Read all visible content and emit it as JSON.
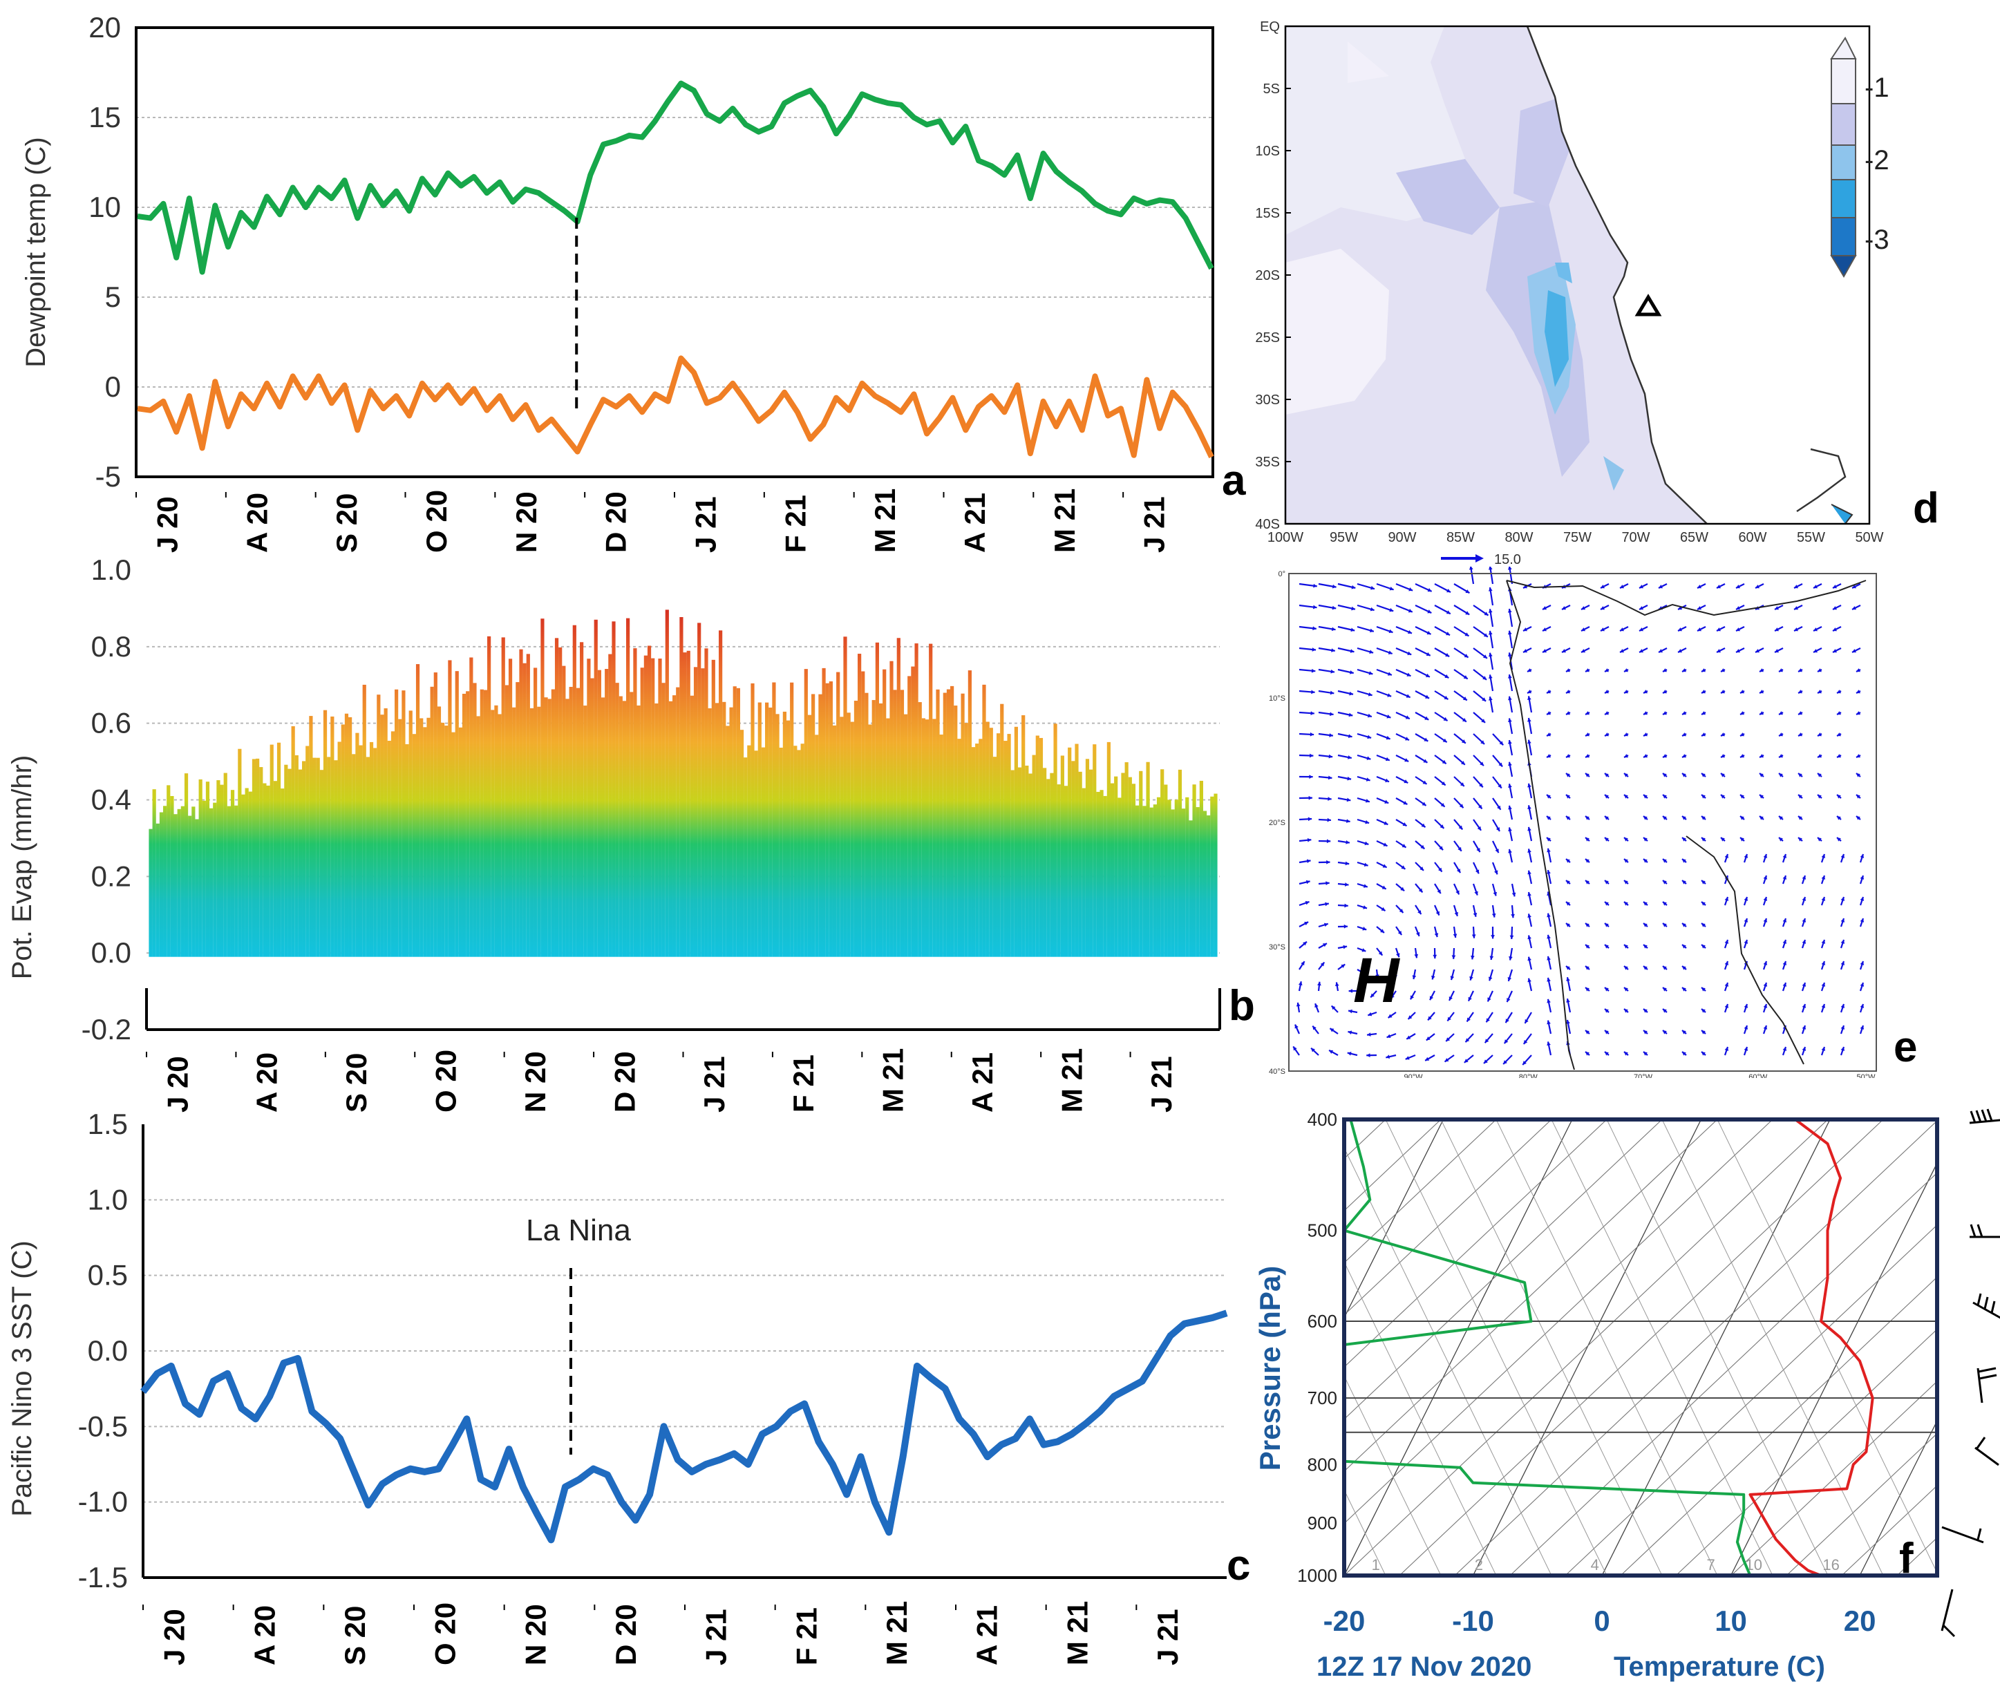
{
  "panel_labels": {
    "a": "a",
    "b": "b",
    "c": "c",
    "d": "d",
    "e": "e",
    "f": "f"
  },
  "colors": {
    "dewpoint": "#17a74a",
    "dewpoint_dep": "#f07f25",
    "sst": "#1f6bc0",
    "skewt_temp": "#e02020",
    "skewt_dew": "#17a74a",
    "wind_vec": "#1010e0",
    "map_light": "#e6e3f4",
    "map_mid": "#c6c8ec",
    "map_blue1": "#8ec4ec",
    "map_blue2": "#2fa3e0"
  },
  "month_ticks": [
    "J 20",
    "A 20",
    "S 20",
    "O 20",
    "N 20",
    "D 20",
    "J 21",
    "F 21",
    "M 21",
    "A 21",
    "M 21",
    "J 21"
  ],
  "chart_data": [
    {
      "id": "a",
      "type": "line",
      "ylabel": "Dewpoint temp (C)",
      "ylim": [
        -5,
        20
      ],
      "yticks": [
        "20",
        "15",
        "10",
        "5",
        "0",
        "-5"
      ],
      "grid": true,
      "marker_month_index": 4.6,
      "series": [
        {
          "values": [
            9.5,
            9.4,
            10.2,
            7.2,
            10.5,
            6.4,
            10.1,
            7.8,
            9.7,
            8.9,
            10.6,
            9.6,
            11.1,
            10.0,
            11.1,
            10.5,
            11.5,
            9.4,
            11.2,
            10.1,
            10.9,
            9.8,
            11.6,
            10.7,
            11.9,
            11.2,
            11.7,
            10.8,
            11.4,
            10.3,
            11.0,
            10.8,
            10.3,
            9.8,
            9.2,
            11.8,
            13.5,
            13.7,
            14.0,
            13.9,
            14.8,
            15.9,
            16.9,
            16.5,
            15.2,
            14.8,
            15.5,
            14.6,
            14.2,
            14.5,
            15.8,
            16.2,
            16.5,
            15.6,
            14.1,
            15.1,
            16.3,
            16.0,
            15.8,
            15.7,
            15.0,
            14.6,
            14.8,
            13.6,
            14.5,
            12.6,
            12.3,
            11.8,
            12.9,
            10.5,
            13.0,
            12.0,
            11.4,
            10.9,
            10.2,
            9.8,
            9.6,
            10.5,
            10.2,
            10.4,
            10.3,
            9.4,
            8.0,
            6.6
          ]
        },
        {
          "values": [
            -1.2,
            -1.3,
            -0.8,
            -2.5,
            -0.5,
            -3.4,
            0.3,
            -2.2,
            -0.4,
            -1.2,
            0.2,
            -1.1,
            0.6,
            -0.6,
            0.6,
            -0.9,
            0.1,
            -2.4,
            -0.2,
            -1.2,
            -0.5,
            -1.6,
            0.2,
            -0.7,
            0.1,
            -0.9,
            -0.1,
            -1.3,
            -0.5,
            -1.8,
            -1.0,
            -2.4,
            -1.8,
            -2.7,
            -3.6,
            -2.1,
            -0.7,
            -1.1,
            -0.5,
            -1.4,
            -0.4,
            -0.8,
            1.6,
            0.8,
            -0.9,
            -0.6,
            0.2,
            -0.8,
            -1.9,
            -1.3,
            -0.3,
            -1.4,
            -2.9,
            -2.1,
            -0.6,
            -1.3,
            0.2,
            -0.5,
            -0.9,
            -1.4,
            -0.4,
            -2.6,
            -1.7,
            -0.6,
            -2.4,
            -1.1,
            -0.5,
            -1.4,
            0.1,
            -3.7,
            -0.8,
            -2.2,
            -0.8,
            -2.4,
            0.6,
            -1.6,
            -1.2,
            -3.8,
            0.4,
            -2.3,
            -0.3,
            -1.1,
            -2.4,
            -3.9
          ]
        }
      ]
    },
    {
      "id": "b",
      "type": "bar",
      "ylabel": "Pot. Evap (mm/hr)",
      "ylim": [
        -0.2,
        1.0
      ],
      "yticks": [
        "1.0",
        "0.8",
        "0.6",
        "0.4",
        "0.2",
        "0.0",
        "-0.2"
      ],
      "grid": true,
      "series": [
        {
          "name": "daily_max",
          "values": [
            0.45,
            0.47,
            0.48,
            0.51,
            0.55,
            0.58,
            0.62,
            0.66,
            0.69,
            0.71,
            0.74,
            0.77,
            0.79,
            0.82,
            0.85,
            0.87,
            0.88,
            0.89,
            0.9,
            0.9,
            0.88,
            0.91,
            0.92,
            0.86,
            0.7,
            0.76,
            0.72,
            0.8,
            0.84,
            0.82,
            0.86,
            0.85,
            0.78,
            0.76,
            0.7,
            0.65,
            0.61,
            0.6,
            0.57,
            0.55,
            0.52,
            0.5,
            0.48,
            0.47
          ]
        },
        {
          "name": "daily_min",
          "values": [
            -0.01,
            -0.01,
            -0.01,
            -0.01,
            -0.01,
            -0.01,
            -0.01,
            -0.01,
            -0.01,
            -0.01,
            -0.01,
            -0.01,
            -0.01,
            -0.01,
            -0.01,
            -0.01,
            -0.01,
            -0.01,
            -0.01,
            -0.01,
            -0.01,
            -0.01,
            -0.01,
            -0.01,
            -0.01,
            -0.01,
            -0.01,
            -0.01,
            -0.01,
            -0.01,
            -0.01,
            -0.01,
            -0.01,
            -0.01,
            -0.01,
            -0.01,
            -0.01,
            -0.01,
            -0.01,
            -0.01,
            -0.01,
            -0.01,
            -0.01,
            -0.01
          ]
        }
      ]
    },
    {
      "id": "c",
      "type": "line",
      "ylabel": "Pacific Nino 3 SST (C)",
      "ylim": [
        -1.5,
        1.5
      ],
      "yticks": [
        "1.5",
        "1.0",
        "0.5",
        "0.0",
        "-0.5",
        "-1.0",
        "-1.5"
      ],
      "grid": true,
      "annotation": "La Nina",
      "marker_month_index": 4.7,
      "series": [
        {
          "values": [
            -0.27,
            -0.15,
            -0.1,
            -0.35,
            -0.42,
            -0.2,
            -0.15,
            -0.38,
            -0.45,
            -0.3,
            -0.08,
            -0.05,
            -0.4,
            -0.48,
            -0.58,
            -0.8,
            -1.02,
            -0.88,
            -0.82,
            -0.78,
            -0.8,
            -0.78,
            -0.62,
            -0.45,
            -0.85,
            -0.9,
            -0.65,
            -0.9,
            -1.08,
            -1.25,
            -0.9,
            -0.85,
            -0.78,
            -0.82,
            -1.0,
            -1.12,
            -0.95,
            -0.5,
            -0.72,
            -0.8,
            -0.75,
            -0.72,
            -0.68,
            -0.75,
            -0.55,
            -0.5,
            -0.4,
            -0.35,
            -0.6,
            -0.75,
            -0.95,
            -0.7,
            -1.0,
            -1.2,
            -0.7,
            -0.1,
            -0.18,
            -0.25,
            -0.45,
            -0.55,
            -0.7,
            -0.62,
            -0.58,
            -0.45,
            -0.62,
            -0.6,
            -0.55,
            -0.48,
            -0.4,
            -0.3,
            -0.25,
            -0.2,
            -0.05,
            0.1,
            0.18,
            0.2,
            0.22,
            0.25
          ]
        }
      ]
    },
    {
      "id": "d",
      "type": "heatmap",
      "colorbar_ticks": [
        "-1",
        "-2",
        "-3"
      ],
      "lat_labels": [
        "EQ",
        "5S",
        "10S",
        "15S",
        "20S",
        "25S",
        "30S",
        "35S",
        "40S"
      ],
      "lon_labels": [
        "100W",
        "95W",
        "90W",
        "85W",
        "80W",
        "75W",
        "70W",
        "65W",
        "60W",
        "55W",
        "50W"
      ],
      "vector_label": "15.0"
    },
    {
      "id": "e",
      "type": "other",
      "marker_label": "H",
      "lat_labels": [
        "0°",
        "10°S",
        "20°S",
        "30°S",
        "40°S"
      ],
      "lon_labels": [
        "90°W",
        "80°W",
        "70°W",
        "60°W",
        "50°W"
      ]
    },
    {
      "id": "f",
      "type": "line",
      "ylabel": "Pressure (hPa)",
      "xlabel": "Temperature (C)",
      "date_label": "12Z 17 Nov 2020",
      "xticks": [
        "-20",
        "-10",
        "0",
        "10",
        "20"
      ],
      "yticks": [
        "400",
        "500",
        "600",
        "700",
        "800",
        "900",
        "1000"
      ],
      "mixing_ratio_labels": [
        "1",
        "2",
        "4",
        "7",
        "10",
        "16"
      ],
      "xlim": [
        -20,
        26
      ],
      "ylim": [
        400,
        1000
      ],
      "series": [
        {
          "name": "temperature",
          "x": [
            17.0,
            16.0,
            15.0,
            13.5,
            11.5,
            19.0,
            19.5,
            20.5,
            21.0,
            20.0,
            18.5,
            17.0,
            17.5,
            17.5,
            18.0,
            18.5,
            17.5,
            15.0
          ],
          "y": [
            1000,
            990,
            970,
            930,
            850,
            840,
            800,
            780,
            700,
            650,
            620,
            600,
            550,
            500,
            470,
            450,
            420,
            400
          ]
        },
        {
          "name": "dewpoint",
          "x": [
            11.5,
            11.0,
            10.5,
            11.0,
            11.0,
            -10.0,
            -11.0,
            -20.0,
            -20.5,
            -20.0,
            -20.5,
            -5.5,
            -6.0,
            -20.0,
            -18.0,
            -18.5,
            -19.5
          ],
          "y": [
            1000,
            970,
            935,
            880,
            850,
            830,
            805,
            795,
            700,
            650,
            630,
            600,
            555,
            500,
            470,
            440,
            400
          ]
        }
      ]
    }
  ]
}
